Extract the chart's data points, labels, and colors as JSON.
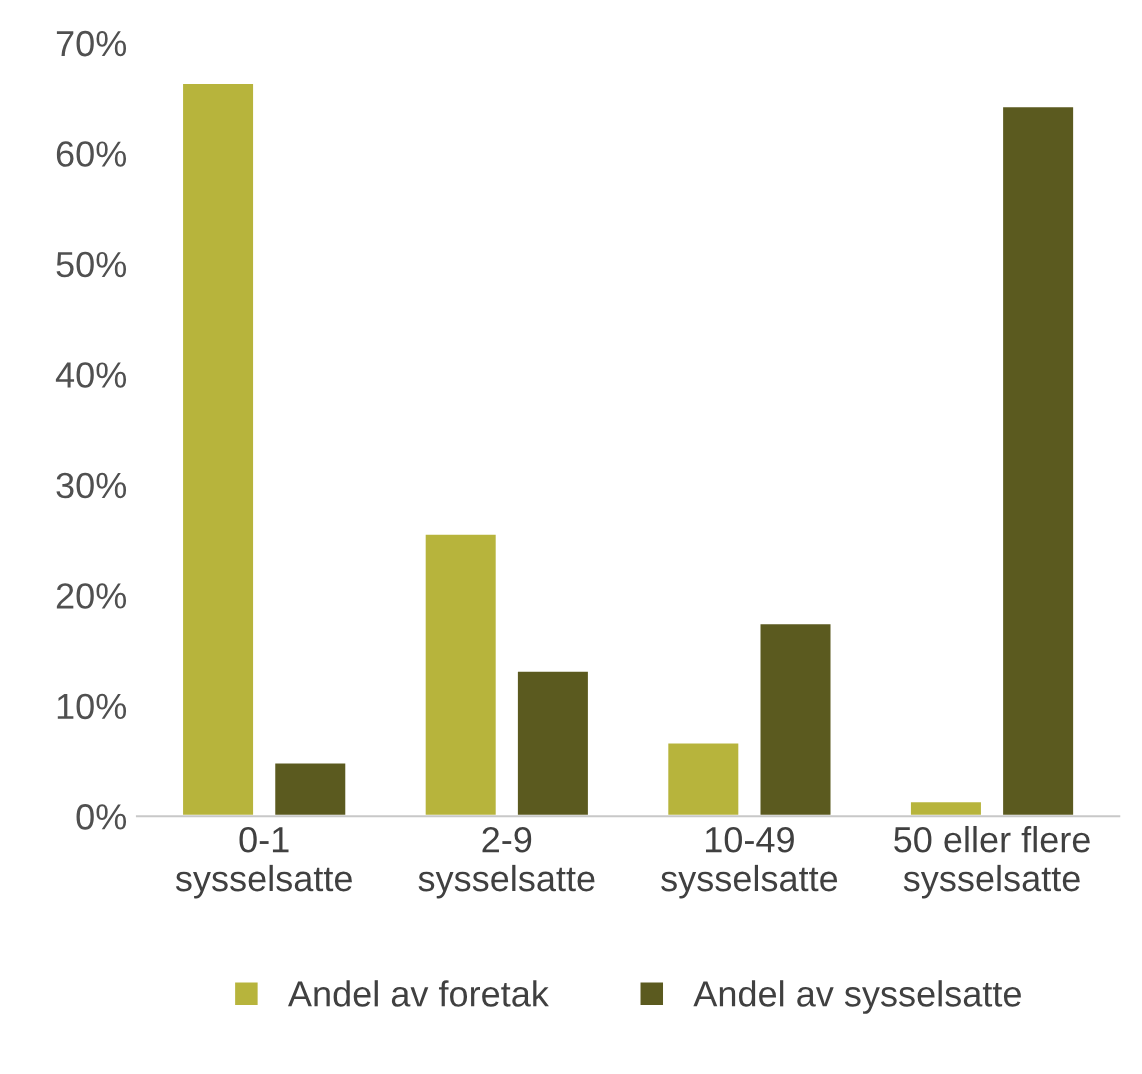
{
  "chart_data": {
    "type": "bar",
    "categories": [
      "0-1\nsysselsatte",
      "2-9\nsysselsatte",
      "10-49\nsysselsatte",
      "50 eller flere\nsysselsatte"
    ],
    "series": [
      {
        "name": "Andel av foretak",
        "color": "#b7b43c",
        "values": [
          66.4,
          25.6,
          6.7,
          1.4
        ]
      },
      {
        "name": "Andel av sysselsatte",
        "color": "#5b5a1f",
        "values": [
          4.9,
          13.2,
          17.5,
          64.3
        ]
      }
    ],
    "ylim": [
      0,
      70
    ],
    "yticks": [
      {
        "value": 0,
        "label": "0%"
      },
      {
        "value": 10,
        "label": "10%"
      },
      {
        "value": 20,
        "label": "20%"
      },
      {
        "value": 30,
        "label": "30%"
      },
      {
        "value": 40,
        "label": "40%"
      },
      {
        "value": 50,
        "label": "50%"
      },
      {
        "value": 60,
        "label": "60%"
      },
      {
        "value": 70,
        "label": "70%"
      }
    ],
    "grid": false,
    "legend": "bottom"
  }
}
